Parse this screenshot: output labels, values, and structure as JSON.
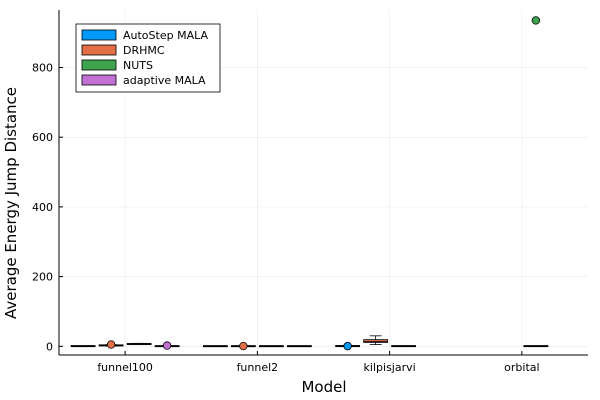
{
  "chart_data": {
    "type": "box",
    "title": "",
    "xlabel": "Model",
    "ylabel": "Average Energy Jump Distance",
    "ylim": [
      -25,
      965
    ],
    "yticks": [
      0,
      200,
      400,
      600,
      800
    ],
    "grid": true,
    "legend_position": "top-left",
    "categories": [
      "funnel100",
      "funnel2",
      "kilpisjarvi",
      "orbital"
    ],
    "series": [
      {
        "name": "AutoStep MALA",
        "color": "#009af9",
        "boxes": [
          {
            "category": "funnel100",
            "q1": 0.3,
            "median": 0.5,
            "q3": 0.8,
            "min": 0.1,
            "max": 1.2,
            "outliers": []
          },
          {
            "category": "funnel2",
            "q1": 0.2,
            "median": 0.4,
            "q3": 0.6,
            "min": 0.1,
            "max": 0.9,
            "outliers": []
          },
          {
            "category": "kilpisjarvi",
            "q1": 0.3,
            "median": 0.6,
            "q3": 1.0,
            "min": 0.1,
            "max": 1.5,
            "outliers": [
              0.5
            ]
          },
          null
        ]
      },
      {
        "name": "DRHMC",
        "color": "#e26f46",
        "boxes": [
          {
            "category": "funnel100",
            "q1": 1.5,
            "median": 2.5,
            "q3": 3.5,
            "min": 0.8,
            "max": 4.5,
            "outliers": [
              5
            ]
          },
          {
            "category": "funnel2",
            "q1": 0.2,
            "median": 0.4,
            "q3": 0.6,
            "min": 0.1,
            "max": 0.8,
            "outliers": [
              0.6
            ]
          },
          {
            "category": "kilpisjarvi",
            "q1": 11,
            "median": 14,
            "q3": 19,
            "min": 5,
            "max": 30,
            "outliers": []
          },
          null
        ]
      },
      {
        "name": "NUTS",
        "color": "#3da44d",
        "boxes": [
          {
            "category": "funnel100",
            "q1": 5.5,
            "median": 6.5,
            "q3": 7.5,
            "min": 5,
            "max": 8.5,
            "outliers": []
          },
          {
            "category": "funnel2",
            "q1": 0.2,
            "median": 0.4,
            "q3": 0.6,
            "min": 0.1,
            "max": 0.8,
            "outliers": []
          },
          {
            "category": "kilpisjarvi",
            "q1": 0.3,
            "median": 0.5,
            "q3": 0.8,
            "min": 0.1,
            "max": 1.2,
            "outliers": []
          },
          {
            "category": "orbital",
            "q1": 0.3,
            "median": 0.5,
            "q3": 0.8,
            "min": 0.1,
            "max": 1.2,
            "outliers": [
              935
            ]
          }
        ]
      },
      {
        "name": "adaptive MALA",
        "color": "#c271d2",
        "boxes": [
          {
            "category": "funnel100",
            "q1": 0.2,
            "median": 0.5,
            "q3": 0.8,
            "min": 0.1,
            "max": 1.2,
            "outliers": [
              2
            ]
          },
          {
            "category": "funnel2",
            "q1": 0.2,
            "median": 0.4,
            "q3": 0.6,
            "min": 0.1,
            "max": 0.8,
            "outliers": []
          },
          null,
          null
        ]
      }
    ]
  }
}
